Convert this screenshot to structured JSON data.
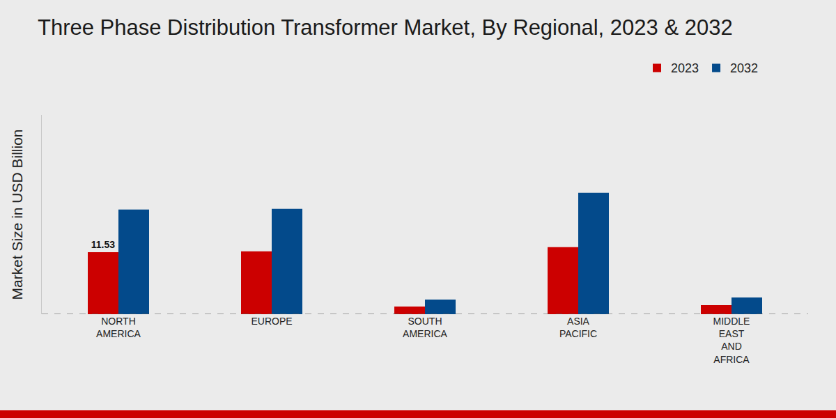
{
  "chart_data": {
    "type": "bar",
    "title": "Three Phase Distribution Transformer Market, By Regional, 2023 & 2032",
    "y_label": "Market Size in USD Billion",
    "categories": [
      "NORTH AMERICA",
      "EUROPE",
      "SOUTH AMERICA",
      "ASIA PACIFIC",
      "MIDDLE EAST AND AFRICA"
    ],
    "series": [
      {
        "name": "2023",
        "color": "#cc0000",
        "values": [
          11.53,
          11.66,
          1.43,
          12.44,
          1.68
        ],
        "value_labels": [
          "11.53",
          null,
          null,
          null,
          null
        ]
      },
      {
        "name": "2032",
        "color": "#034a8b",
        "values": [
          19.44,
          19.57,
          2.72,
          22.55,
          3.11
        ]
      }
    ],
    "ylim": [
      0,
      37
    ],
    "tick_labels": "x",
    "legend": "top right",
    "grid": false
  }
}
